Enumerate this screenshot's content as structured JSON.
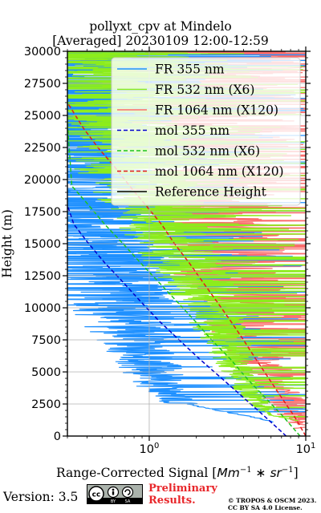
{
  "title_line1": "pollyxt_cpv at Mindelo",
  "title_line2": "[Averaged] 20230109 12:00-12:59",
  "footer": {
    "version": "Version: 3.5",
    "cc_badge": "cc by sa",
    "preliminary": "Preliminary",
    "results": "Results.",
    "copyright_line1": "© TROPOS & OSCM 2023.",
    "copyright_line2": "CC BY SA 4.0 License."
  },
  "chart_data": {
    "type": "line",
    "title": "pollyxt_cpv at Mindelo [Averaged] 20230109 12:00-12:59",
    "xlabel": "Range-Corrected Signal [Mm^-1 * sr^-1]",
    "ylabel": "Height (m)",
    "x_scale": "log",
    "xlim": [
      0.3,
      10
    ],
    "ylim": [
      0,
      30000
    ],
    "x_ticks": [
      {
        "value": 1,
        "label": "10^0"
      },
      {
        "value": 10,
        "label": "10^1"
      }
    ],
    "y_ticks": [
      0,
      2500,
      5000,
      7500,
      10000,
      12500,
      15000,
      17500,
      20000,
      22500,
      25000,
      27500,
      30000
    ],
    "grid": true,
    "legend_position": "top-right",
    "legend": [
      "FR 355 nm",
      "FR 532 nm (X6)",
      "FR 1064 nm (X120)",
      "mol 355 nm",
      "mol 532 nm (X6)",
      "mol 1064 nm (X120)",
      "Reference Height"
    ],
    "colors": {
      "fr355": "#1e90ff",
      "fr532": "#8ced1c",
      "fr1064": "#fb6d6d",
      "mol355": "#0000cd",
      "mol532": "#1ec41e",
      "mol1064": "#e11b1b",
      "reference": "#000000"
    },
    "series": [
      {
        "name": "FR 355 nm",
        "style": "solid",
        "x": [
          6.2,
          5.0,
          3.0,
          1.6,
          1.25,
          1.1,
          0.95,
          0.85,
          0.75,
          0.65,
          0.55,
          0.45,
          0.35,
          0.3
        ],
        "y": [
          1100,
          1400,
          1900,
          2600,
          3500,
          4500,
          6000,
          7500,
          9000,
          10500,
          12000,
          14000,
          16500,
          18000
        ]
      },
      {
        "name": "FR 532 nm (X6)",
        "style": "solid",
        "x": [
          9.0,
          6.0,
          5.0,
          4.0,
          3.6,
          3.2,
          2.8,
          2.4,
          2.0,
          1.6,
          1.3,
          1.0,
          0.8,
          0.6
        ],
        "y": [
          1200,
          1600,
          2500,
          4000,
          5500,
          7000,
          8500,
          10000,
          12000,
          14000,
          16000,
          18500,
          21000,
          24000
        ]
      },
      {
        "name": "FR 1064 nm (X120)",
        "style": "solid",
        "x": [
          10.0,
          8.0,
          6.5,
          5.5,
          4.8,
          4.2,
          3.6,
          3.0,
          2.5,
          2.0
        ],
        "y": [
          600,
          2000,
          3500,
          5000,
          7000,
          9000,
          11000,
          13500,
          16000,
          19000
        ]
      },
      {
        "name": "mol 355 nm",
        "style": "dashed",
        "x": [
          7.5,
          5.5,
          4.0,
          2.9,
          2.1,
          1.55,
          1.15,
          0.88,
          0.68,
          0.52,
          0.41,
          0.33,
          0.3
        ],
        "y": [
          0,
          1500,
          3000,
          4500,
          6000,
          7500,
          9000,
          10500,
          12000,
          13500,
          15000,
          16500,
          18000
        ]
      },
      {
        "name": "mol 532 nm (X6)",
        "style": "dashed",
        "x": [
          9.2,
          7.2,
          5.5,
          4.2,
          3.3,
          2.5,
          1.95,
          1.5,
          1.15,
          0.88,
          0.68,
          0.52,
          0.41,
          0.32,
          0.3
        ],
        "y": [
          0,
          1500,
          3000,
          4500,
          6000,
          7500,
          9000,
          10500,
          12000,
          13500,
          15000,
          16500,
          18000,
          19500,
          24500
        ]
      },
      {
        "name": "mol 1064 nm (X120)",
        "style": "dashed",
        "x": [
          10.0,
          8.5,
          7.0,
          5.8,
          4.8,
          4.0,
          3.3,
          2.7,
          2.2,
          1.8,
          1.45,
          1.2,
          0.95,
          0.75,
          0.6,
          0.47,
          0.38,
          0.3
        ],
        "y": [
          0,
          1500,
          3000,
          4500,
          6000,
          7500,
          9000,
          10500,
          12000,
          13500,
          15000,
          16500,
          18000,
          19500,
          21000,
          22500,
          24000,
          26000
        ]
      }
    ]
  }
}
